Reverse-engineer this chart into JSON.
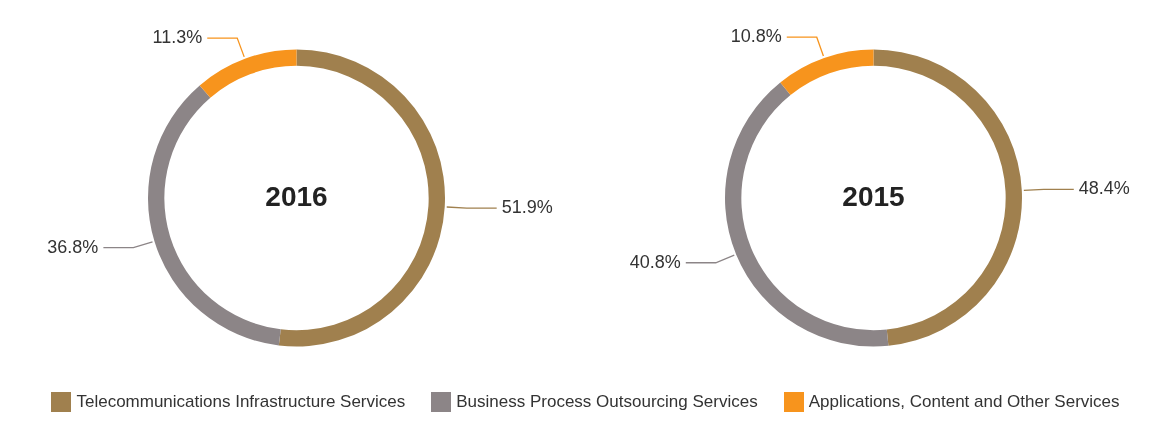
{
  "chart_data": [
    {
      "type": "donut",
      "title": "2016",
      "categories": [
        "Telecommunications Infrastructure Services",
        "Business Process Outsourcing Services",
        "Applications, Content and Other Services"
      ],
      "values": [
        51.9,
        36.8,
        11.3
      ],
      "value_labels": [
        "51.9%",
        "36.8%",
        "11.3%"
      ],
      "colors": [
        "#a0804e",
        "#8c8587",
        "#f7941d"
      ],
      "legend": "bottom"
    },
    {
      "type": "donut",
      "title": "2015",
      "categories": [
        null,
        null,
        null
      ],
      "values": [
        48.4,
        40.8,
        10.8
      ],
      "value_labels": [
        "48.4%",
        "40.8%",
        "10.8%"
      ],
      "colors": [
        "#a0804e",
        "#8c8587",
        "#f7941d"
      ]
    }
  ]
}
